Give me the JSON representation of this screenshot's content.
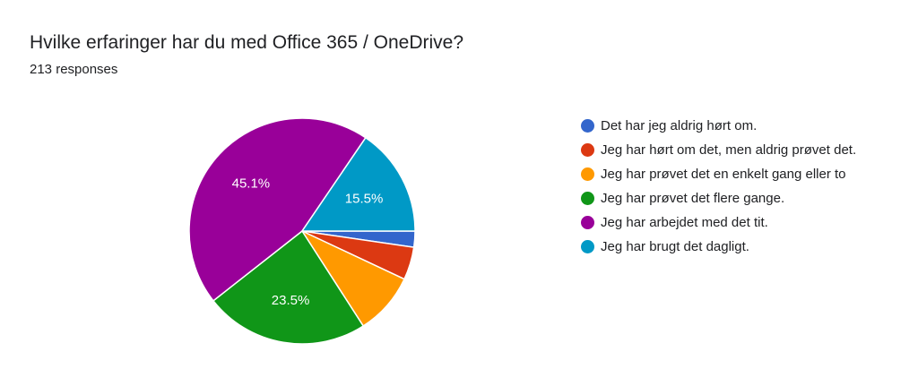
{
  "header": {
    "title": "Hvilke erfaringer har du med Office 365 / OneDrive?",
    "subtitle": "213 responses"
  },
  "chart_data": {
    "type": "pie",
    "start_angle_deg": 90,
    "direction": "clockwise",
    "legend_position": "right",
    "slices": [
      {
        "label": "Det har jeg aldrig hørt om.",
        "value": 2.3,
        "color": "#3366cc",
        "data_label": ""
      },
      {
        "label": "Jeg har hørt om det, men aldrig prøvet det.",
        "value": 4.7,
        "color": "#dc3912",
        "data_label": ""
      },
      {
        "label": "Jeg har prøvet det en enkelt gang eller to",
        "value": 8.9,
        "color": "#ff9900",
        "data_label": ""
      },
      {
        "label": "Jeg har prøvet det flere gange.",
        "value": 23.5,
        "color": "#109618",
        "data_label": "23.5%"
      },
      {
        "label": "Jeg har arbejdet med det tit.",
        "value": 45.1,
        "color": "#990099",
        "data_label": "45.1%"
      },
      {
        "label": "Jeg har brugt det dagligt.",
        "value": 15.5,
        "color": "#0099c6",
        "data_label": "15.5%"
      }
    ]
  }
}
